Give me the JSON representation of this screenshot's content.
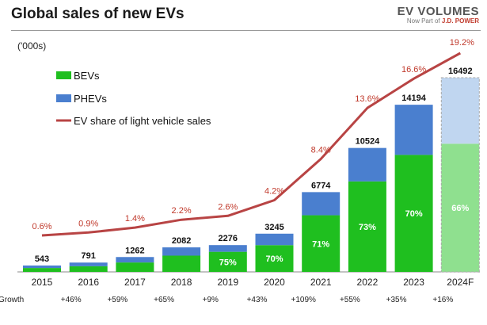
{
  "header": {
    "title": "Global sales of new EVs",
    "logo_main": "EV VOLUMES",
    "logo_sub_prefix": "Now Part of ",
    "logo_sub_brand": "J.D. POWER"
  },
  "units_label": "('000s)",
  "growth_label": "Growth",
  "colors": {
    "bev": "#1fbf1f",
    "phev": "#4a7fcf",
    "bev_forecast": "#8fe08f",
    "phev_forecast": "#c0d6f0",
    "share_line": "#b84444",
    "share_label": "#c0392b"
  },
  "chart_data": {
    "type": "bar",
    "stacked": true,
    "categories": [
      "2015",
      "2016",
      "2017",
      "2018",
      "2019",
      "2020",
      "2021",
      "2022",
      "2023",
      "2024F"
    ],
    "totals": [
      543,
      791,
      1262,
      2082,
      2276,
      3245,
      6774,
      10524,
      14194,
      16492
    ],
    "series": [
      {
        "name": "BEVs",
        "values": [
          330,
          480,
          800,
          1380,
          1707,
          2272,
          4810,
          7683,
          9936,
          10885
        ]
      },
      {
        "name": "PHEVs",
        "values": [
          213,
          311,
          462,
          702,
          569,
          973,
          1964,
          2841,
          4258,
          5607
        ]
      }
    ],
    "bev_share_labels": [
      "",
      "",
      "",
      "",
      "75%",
      "70%",
      "71%",
      "73%",
      "70%",
      "66%"
    ],
    "line": {
      "name": "EV share of light vehicle sales",
      "values": [
        0.6,
        0.9,
        1.4,
        2.2,
        2.6,
        4.2,
        8.4,
        13.6,
        16.6,
        19.2
      ],
      "labels": [
        "0.6%",
        "0.9%",
        "1.4%",
        "2.2%",
        "2.6%",
        "4.2%",
        "8.4%",
        "13.6%",
        "16.6%",
        "19.2%"
      ]
    },
    "growth": [
      "",
      "+46%",
      "+59%",
      "+65%",
      "+9%",
      "+43%",
      "+109%",
      "+55%",
      "+35%",
      "+16%"
    ],
    "forecast_category": "2024F",
    "legend_position": "top-left",
    "ylim": [
      0,
      17000
    ]
  }
}
